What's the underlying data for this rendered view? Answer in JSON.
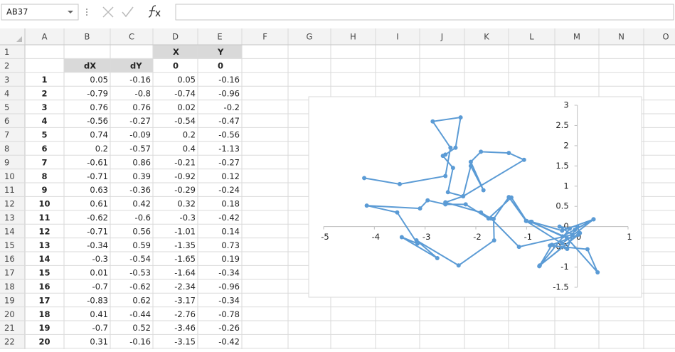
{
  "spreadsheet": {
    "name_box": "AB37",
    "columns": [
      "A",
      "B",
      "C",
      "D",
      "E",
      "F",
      "G",
      "H",
      "I",
      "J",
      "K",
      "L",
      "M",
      "N",
      "O"
    ],
    "row_numbers": [
      1,
      2,
      3,
      4,
      5,
      6,
      7,
      8,
      9,
      10,
      11,
      12,
      13,
      14,
      15,
      16,
      17,
      18,
      19,
      20,
      21,
      22
    ],
    "rows": [
      [
        null,
        null,
        null,
        "X",
        "Y"
      ],
      [
        null,
        "dX",
        "dY",
        0,
        0
      ],
      [
        1,
        0.05,
        -0.16,
        0.05,
        -0.16
      ],
      [
        2,
        -0.79,
        -0.8,
        -0.74,
        -0.96
      ],
      [
        3,
        0.76,
        0.76,
        0.02,
        -0.2
      ],
      [
        4,
        -0.56,
        -0.27,
        -0.54,
        -0.47
      ],
      [
        5,
        0.74,
        -0.09,
        0.2,
        -0.56
      ],
      [
        6,
        0.2,
        -0.57,
        0.4,
        -1.13
      ],
      [
        7,
        -0.61,
        0.86,
        -0.21,
        -0.27
      ],
      [
        8,
        -0.71,
        0.39,
        -0.92,
        0.12
      ],
      [
        9,
        0.63,
        -0.36,
        -0.29,
        -0.24
      ],
      [
        10,
        0.61,
        0.42,
        0.32,
        0.18
      ],
      [
        11,
        -0.62,
        -0.6,
        -0.3,
        -0.42
      ],
      [
        12,
        -0.71,
        0.56,
        -1.01,
        0.14
      ],
      [
        13,
        -0.34,
        0.59,
        -1.35,
        0.73
      ],
      [
        14,
        -0.3,
        -0.54,
        -1.65,
        0.19
      ],
      [
        15,
        0.01,
        -0.53,
        -1.64,
        -0.34
      ],
      [
        16,
        -0.7,
        -0.62,
        -2.34,
        -0.96
      ],
      [
        17,
        -0.83,
        0.62,
        -3.17,
        -0.34
      ],
      [
        18,
        0.41,
        -0.44,
        -2.76,
        -0.78
      ],
      [
        19,
        -0.7,
        0.52,
        -3.46,
        -0.26
      ],
      [
        20,
        0.31,
        -0.16,
        -3.15,
        -0.42
      ]
    ]
  },
  "chart_data": {
    "type": "scatter-line",
    "x": [
      0,
      0.05,
      -0.74,
      0.02,
      -0.54,
      0.2,
      0.4,
      -0.21,
      -0.92,
      -0.29,
      0.32,
      -0.3,
      -1.01,
      -1.35,
      -1.65,
      -1.64,
      -2.34,
      -3.17,
      -2.76,
      -3.46,
      -3.15,
      -3.55,
      -4.15,
      -3.1,
      -2.95,
      -2.6,
      -2.2,
      -1.75,
      -1.3,
      -1.0,
      -0.9,
      -0.3,
      0.32,
      -0.05,
      -0.2,
      -0.5,
      -0.75,
      -0.15,
      -0.35,
      -0.1,
      -1.15,
      -1.7,
      -1.9,
      -2.6,
      -2.25,
      -2.1,
      -1.85,
      -2.1,
      -1.9,
      -1.35,
      -1.05,
      -2.25,
      -2.55,
      -2.45,
      -2.65,
      -2.6,
      -2.4,
      -2.3,
      -2.85,
      -2.5,
      -2.6,
      -3.5,
      -4.2
    ],
    "series": [
      {
        "color": "#5b9bd5",
        "values": [
          0,
          -0.16,
          -0.96,
          -0.2,
          -0.47,
          -0.56,
          -1.13,
          -0.27,
          0.12,
          -0.24,
          0.18,
          -0.42,
          0.14,
          0.73,
          0.19,
          -0.34,
          -0.96,
          -0.34,
          -0.78,
          -0.26,
          -0.42,
          0.35,
          0.52,
          0.45,
          0.65,
          0.55,
          0.55,
          0.2,
          0.72,
          0.14,
          0.12,
          -0.1,
          0.18,
          -0.08,
          -0.55,
          -0.45,
          -0.98,
          -0.05,
          0.0,
          -0.2,
          -0.5,
          0.2,
          0.35,
          0.6,
          0.75,
          1.5,
          0.9,
          1.6,
          1.85,
          1.82,
          1.65,
          0.75,
          0.85,
          1.45,
          1.75,
          1.78,
          1.95,
          2.7,
          2.6,
          1.95,
          1.25,
          1.05,
          1.2
        ]
      }
    ],
    "xlim": [
      -5,
      1
    ],
    "xticks": [
      -5,
      -4,
      -3,
      -2,
      -1,
      0,
      1
    ],
    "ylim": [
      -1.5,
      3
    ],
    "yticks": [
      -1.5,
      -1,
      -0.5,
      0,
      0.5,
      1,
      1.5,
      2,
      2.5,
      3
    ]
  }
}
